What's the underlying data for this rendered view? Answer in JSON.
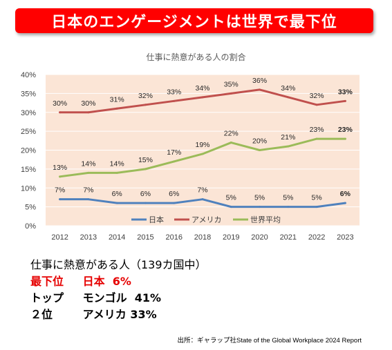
{
  "banner": {
    "title": "日本のエンゲージメントは世界で最下位"
  },
  "chart_data": {
    "type": "line",
    "title": "仕事に熱意がある人の割合",
    "x": [
      "2012",
      "2013",
      "2014",
      "2015",
      "2016",
      "2018",
      "2019",
      "2020",
      "2021",
      "2022",
      "2023"
    ],
    "ylim": [
      0,
      40
    ],
    "yticks": [
      "0%",
      "5%",
      "10%",
      "15%",
      "20%",
      "25%",
      "30%",
      "35%",
      "40%"
    ],
    "grid": true,
    "legend_position": "bottom",
    "series": [
      {
        "name": "日本",
        "color": "#4f81bd",
        "values": [
          7,
          7,
          6,
          6,
          6,
          7,
          5,
          5,
          5,
          5,
          6
        ],
        "labels": [
          "7%",
          "7%",
          "6%",
          "6%",
          "6%",
          "7%",
          "5%",
          "5%",
          "5%",
          "5%",
          "6%"
        ]
      },
      {
        "name": "アメリカ",
        "color": "#c0504d",
        "values": [
          30,
          30,
          31,
          32,
          33,
          34,
          35,
          36,
          34,
          32,
          33
        ],
        "labels": [
          "30%",
          "30%",
          "31%",
          "32%",
          "33%",
          "34%",
          "35%",
          "36%",
          "34%",
          "32%",
          "33%"
        ]
      },
      {
        "name": "世界平均",
        "color": "#9bbb59",
        "values": [
          13,
          14,
          14,
          15,
          17,
          19,
          22,
          20,
          21,
          23,
          23
        ],
        "labels": [
          "13%",
          "14%",
          "14%",
          "15%",
          "17%",
          "19%",
          "22%",
          "20%",
          "21%",
          "23%",
          "23%"
        ]
      }
    ],
    "plot_background": "#fbe5d6"
  },
  "info": {
    "heading": "仕事に熱意がある人（139カ国中）",
    "rows": [
      {
        "rank": "最下位",
        "country": "日本",
        "value": "6%"
      },
      {
        "rank": "トップ",
        "country": "モンゴル",
        "value": "41%"
      },
      {
        "rank": "２位",
        "country": "アメリカ",
        "value": "33%"
      }
    ]
  },
  "source": "出所：ギャラップ社State of the Global Workplace 2024 Report"
}
